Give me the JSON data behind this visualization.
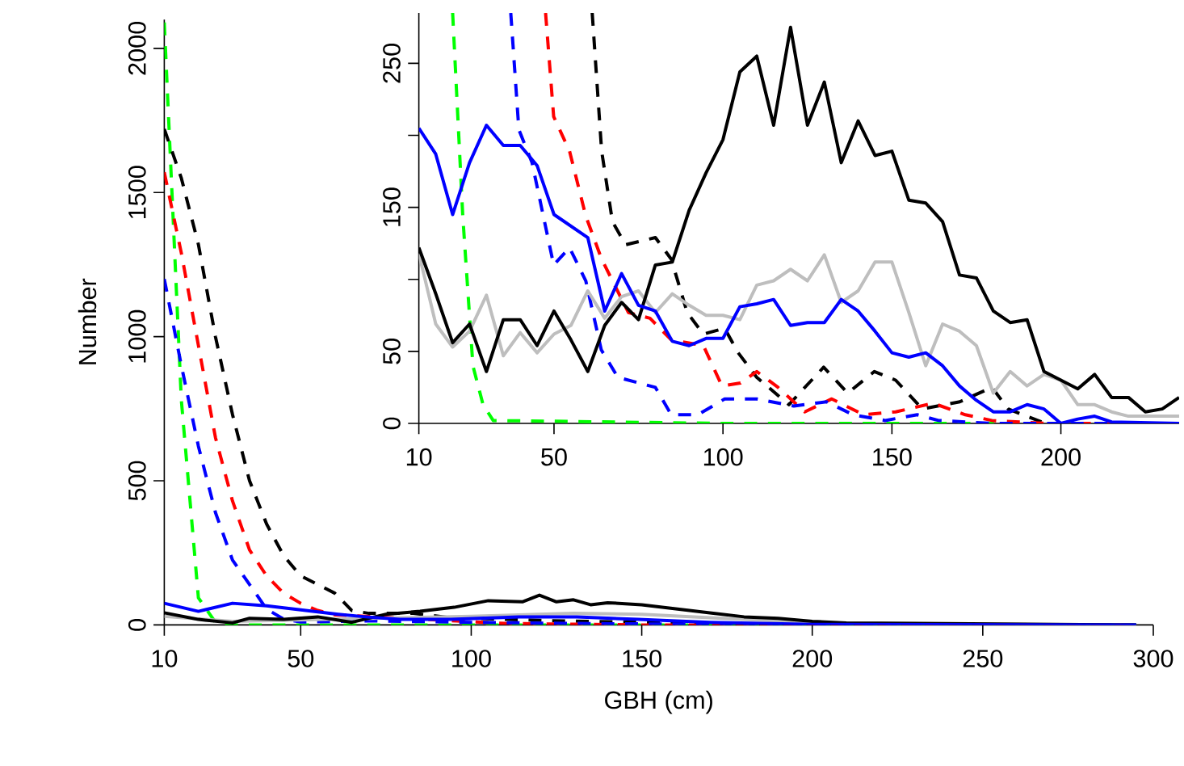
{
  "chart_data": [
    {
      "type": "line",
      "xlabel": "GBH (cm)",
      "ylabel": "Number",
      "xlim": [
        10,
        300
      ],
      "ylim": [
        0,
        2100
      ],
      "xticks": [
        10,
        50,
        100,
        150,
        200,
        250,
        300
      ],
      "yticks": [
        0,
        500,
        1000,
        1500,
        2000
      ],
      "series": [
        {
          "color": "#00ff00",
          "line_style": "dashed",
          "x": [
            10,
            15,
            20,
            25,
            30,
            100,
            160,
            295
          ],
          "values": [
            2090,
            780,
            94,
            9,
            0,
            0,
            0,
            0
          ]
        },
        {
          "color": "#000000",
          "line_style": "dashed",
          "x": [
            10,
            15,
            20,
            25,
            30,
            35,
            40,
            45,
            50,
            55,
            60,
            65,
            70,
            83,
            94,
            122,
            161,
            200,
            295
          ],
          "values": [
            1720,
            1550,
            1320,
            1000,
            730,
            500,
            350,
            240,
            170,
            140,
            110,
            50,
            40,
            40,
            25,
            15,
            7,
            0,
            0
          ]
        },
        {
          "color": "#ff0000",
          "line_style": "dashed",
          "x": [
            10,
            15,
            20,
            25,
            30,
            35,
            40,
            45,
            50,
            55,
            60,
            110,
            150,
            200,
            295
          ],
          "values": [
            1570,
            1290,
            970,
            650,
            430,
            260,
            170,
            110,
            75,
            50,
            35,
            5,
            0,
            0,
            0
          ]
        },
        {
          "color": "#0000ff",
          "line_style": "dashed",
          "x": [
            10,
            15,
            20,
            25,
            30,
            35,
            40,
            45,
            50,
            70,
            100,
            130,
            200,
            295
          ],
          "values": [
            1200,
            900,
            620,
            390,
            225,
            140,
            55,
            20,
            10,
            14,
            9,
            5,
            0,
            0
          ]
        },
        {
          "color": "#bebebe",
          "line_style": "solid",
          "x": [
            10,
            30,
            60,
            100,
            130,
            150,
            170,
            200,
            250,
            295
          ],
          "values": [
            30,
            12,
            20,
            30,
            40,
            37,
            25,
            8,
            2,
            0
          ]
        },
        {
          "color": "#000000",
          "line_style": "solid",
          "x": [
            10,
            20,
            30,
            35,
            45,
            55,
            65,
            75,
            85,
            95,
            105,
            115,
            120,
            125,
            130,
            135,
            140,
            150,
            160,
            170,
            180,
            190,
            200,
            210,
            230,
            295
          ],
          "values": [
            42,
            19,
            7,
            23,
            19,
            28,
            9,
            37,
            47,
            61,
            84,
            80,
            103,
            80,
            87,
            70,
            77,
            70,
            56,
            42,
            28,
            23,
            12,
            7,
            5,
            0
          ]
        },
        {
          "color": "#0000ff",
          "line_style": "solid",
          "x": [
            10,
            20,
            30,
            40,
            50,
            61,
            69,
            79,
            94,
            114,
            131,
            149,
            170,
            200,
            295
          ],
          "values": [
            75,
            47,
            75,
            66,
            52,
            37,
            28,
            19,
            19,
            28,
            28,
            19,
            9,
            2,
            0
          ]
        }
      ]
    },
    {
      "type": "line",
      "xlim": [
        10,
        235
      ],
      "ylim": [
        0,
        285
      ],
      "xticks": [
        10,
        50,
        100,
        150,
        200
      ],
      "yticks": [
        0,
        50,
        {
          "value": 100,
          "label": null
        },
        150,
        {
          "value": 200,
          "label": null
        },
        250
      ],
      "series": [
        {
          "color": "#00ff00",
          "line_style": "dashed",
          "x": [
            20,
            23,
            26,
            29,
            32,
            100,
            150,
            211
          ],
          "values": [
            285,
            144,
            40,
            13,
            2,
            0,
            0,
            0
          ]
        },
        {
          "color": "#000000",
          "line_style": "dashed",
          "x": [
            61.3,
            64.1,
            67.3,
            71.2,
            80,
            84.7,
            89.4,
            94.2,
            100.5,
            104.5,
            110,
            119.5,
            129.8,
            136.9,
            144.8,
            151.1,
            159,
            170.1,
            179.6,
            184.4,
            195.4,
            231.8
          ],
          "values": [
            285,
            189,
            140,
            124,
            129,
            114,
            77,
            62,
            66,
            49,
            32,
            13,
            39,
            21,
            36,
            30,
            10,
            15,
            25,
            10,
            0,
            0
          ]
        },
        {
          "color": "#ff0000",
          "line_style": "dashed",
          "x": [
            47.5,
            49.9,
            54.6,
            59.4,
            64.1,
            72,
            78.4,
            84.7,
            94.2,
            99.7,
            105.2,
            110,
            116.3,
            124.2,
            132.2,
            141.6,
            151.1,
            162.2,
            171.7,
            179.6,
            195.4,
            231.8
          ],
          "values": [
            285,
            213,
            189,
            144,
            114,
            77,
            73,
            58,
            54,
            26,
            28,
            36,
            25,
            8,
            17,
            6,
            8,
            14,
            6,
            2,
            0,
            0
          ]
        },
        {
          "color": "#0000ff",
          "line_style": "dashed",
          "x": [
            37.2,
            39.6,
            43.5,
            49.9,
            54.6,
            59.4,
            64,
            68.9,
            80,
            84.7,
            92.6,
            100.5,
            110,
            121,
            130.6,
            138.5,
            148,
            157.5,
            163.8,
            179.6,
            231.8
          ],
          "values": [
            285,
            204,
            181,
            110,
            122,
            99,
            51,
            32,
            25,
            6,
            6,
            17,
            17,
            12,
            15,
            6,
            2,
            6,
            2,
            0,
            0
          ]
        },
        {
          "color": "#bebebe",
          "line_style": "solid",
          "x": [
            10,
            15,
            20,
            25,
            30,
            35,
            40,
            45,
            50,
            55,
            60,
            65,
            70,
            75,
            80,
            85,
            90,
            95,
            100,
            105,
            110,
            115,
            120,
            125,
            130,
            135,
            140,
            145,
            150,
            155,
            160,
            165,
            170,
            175,
            180,
            185,
            190,
            195,
            200,
            205,
            210,
            215,
            220,
            225,
            235
          ],
          "values": [
            118,
            69,
            53,
            64,
            89,
            47,
            63,
            49,
            62,
            68,
            92,
            73,
            88,
            92,
            77,
            90,
            82,
            75,
            75,
            72,
            96,
            99,
            107,
            99,
            117,
            84,
            92,
            112,
            112,
            77,
            40,
            69,
            64,
            54,
            21,
            36,
            26,
            34,
            30,
            13,
            13,
            8,
            5,
            5,
            5
          ]
        },
        {
          "color": "#000000",
          "line_style": "solid",
          "x": [
            10,
            15,
            20,
            25,
            30,
            35,
            40,
            45,
            50,
            55,
            60,
            65,
            70,
            75,
            80,
            85,
            90,
            95,
            100,
            105,
            110,
            115,
            120,
            125,
            130,
            135,
            140,
            145,
            150,
            155,
            160,
            165,
            170,
            175,
            180,
            185,
            190,
            195,
            200,
            205,
            210,
            215,
            220,
            225,
            230,
            235
          ],
          "values": [
            122,
            90,
            56,
            69,
            36,
            72,
            72,
            54,
            78,
            58,
            36,
            68,
            84,
            72,
            110,
            112,
            148,
            174,
            197,
            244,
            255,
            207,
            275,
            207,
            237,
            181,
            210,
            186,
            189,
            155,
            153,
            140,
            103,
            101,
            78,
            70,
            72,
            36,
            30,
            24,
            34,
            18,
            18,
            8,
            10,
            18
          ]
        },
        {
          "color": "#0000ff",
          "line_style": "solid",
          "x": [
            10,
            15,
            20,
            25,
            30,
            35,
            40,
            45,
            50,
            55,
            60,
            65,
            70,
            75,
            80,
            85,
            90,
            95,
            100,
            105,
            110,
            115,
            120,
            125,
            130,
            135,
            140,
            145,
            150,
            155,
            160,
            165,
            170,
            175,
            180,
            185,
            190,
            195,
            200,
            205,
            210,
            215,
            235
          ],
          "values": [
            205,
            187,
            145,
            181,
            207,
            193,
            193,
            179,
            145,
            137,
            129,
            78,
            104,
            82,
            78,
            57,
            54,
            59,
            59,
            81,
            83,
            86,
            68,
            70,
            70,
            86,
            78,
            64,
            49,
            46,
            49,
            40,
            26,
            16,
            8,
            8,
            13,
            10,
            0,
            3,
            5,
            1,
            0
          ]
        }
      ]
    }
  ]
}
